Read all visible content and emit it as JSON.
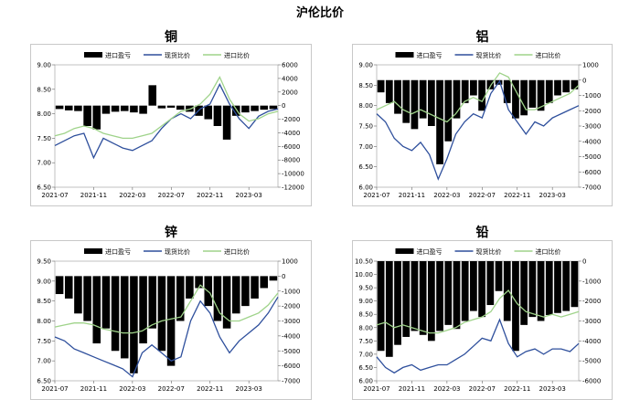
{
  "page_title": "沪伦比价",
  "chart_data": [
    {
      "type": "line",
      "title": "铜",
      "legend": [
        "进口盈亏",
        "现货比价",
        "进口比价"
      ],
      "legend_placement": "top",
      "x_ticks": [
        "2021-07",
        "2021-11",
        "2022-03",
        "2022-07",
        "2022-11",
        "2023-03"
      ],
      "x_range": [
        "2021-07",
        "2023-06"
      ],
      "y_left": {
        "range": [
          6.5,
          9.0
        ],
        "ticks": [
          "9.00",
          "8.50",
          "8.00",
          "7.50",
          "7.00",
          "6.50"
        ]
      },
      "y_right": {
        "range": [
          -12000,
          6000
        ],
        "ticks": [
          "6000",
          "4000",
          "2000",
          "0",
          "-2000",
          "-4000",
          "-6000",
          "-8000",
          "-10000",
          "-12000"
        ]
      },
      "series": [
        {
          "name": "现货比价",
          "axis": "left",
          "color": "#2e4f9c",
          "values": [
            7.35,
            7.45,
            7.55,
            7.6,
            7.1,
            7.5,
            7.4,
            7.3,
            7.25,
            7.35,
            7.45,
            7.7,
            7.9,
            8.0,
            7.9,
            8.1,
            8.2,
            8.6,
            8.2,
            7.9,
            7.7,
            7.95,
            8.05,
            8.1
          ]
        },
        {
          "name": "进口比价",
          "axis": "left",
          "color": "#9fd38a",
          "values": [
            7.55,
            7.6,
            7.7,
            7.75,
            7.7,
            7.6,
            7.55,
            7.5,
            7.5,
            7.55,
            7.6,
            7.75,
            7.9,
            8.05,
            8.1,
            8.2,
            8.4,
            8.75,
            8.3,
            8.0,
            7.85,
            7.9,
            8.0,
            8.05
          ]
        },
        {
          "name": "进口盈亏",
          "axis": "right",
          "type": "bar",
          "color": "#000000",
          "values": [
            -500,
            -700,
            -800,
            -3000,
            -3500,
            -1200,
            -900,
            -800,
            -1000,
            -1200,
            3000,
            -400,
            -300,
            -600,
            -900,
            -1500,
            -2000,
            -3000,
            -5000,
            -1500,
            -1000,
            -800,
            -600,
            -500
          ]
        }
      ]
    },
    {
      "type": "line",
      "title": "铝",
      "legend": [
        "进口盈亏",
        "现货比价",
        "进口比价"
      ],
      "legend_placement": "top",
      "x_ticks": [
        "2021-07",
        "2021-11",
        "2022-03",
        "2022-07",
        "2022-11",
        "2023-03"
      ],
      "x_range": [
        "2021-07",
        "2023-06"
      ],
      "y_left": {
        "range": [
          6.0,
          9.0
        ],
        "ticks": [
          "9.00",
          "8.50",
          "8.00",
          "7.50",
          "7.00",
          "6.50",
          "6.00"
        ]
      },
      "y_right": {
        "range": [
          -7000,
          1000
        ],
        "ticks": [
          "1000",
          "0",
          "-1000",
          "-2000",
          "-3000",
          "-4000",
          "-5000",
          "-6000",
          "-7000"
        ]
      },
      "series": [
        {
          "name": "现货比价",
          "axis": "left",
          "color": "#2e4f9c",
          "values": [
            7.8,
            7.6,
            7.2,
            7.0,
            6.9,
            7.1,
            6.8,
            6.2,
            6.7,
            7.3,
            7.6,
            7.8,
            7.7,
            8.3,
            8.6,
            7.9,
            7.6,
            7.3,
            7.6,
            7.5,
            7.7,
            7.8,
            7.9,
            8.0
          ]
        },
        {
          "name": "进口比价",
          "axis": "left",
          "color": "#9fd38a",
          "values": [
            7.9,
            8.0,
            8.1,
            7.9,
            7.8,
            7.9,
            7.8,
            7.7,
            7.6,
            7.8,
            8.1,
            8.2,
            8.1,
            8.5,
            8.8,
            8.7,
            8.3,
            7.9,
            7.9,
            8.0,
            8.1,
            8.2,
            8.3,
            8.5
          ]
        },
        {
          "name": "进口盈亏",
          "axis": "right",
          "type": "bar",
          "color": "#000000",
          "values": [
            -800,
            -1500,
            -2200,
            -2800,
            -3200,
            -2500,
            -3000,
            -5500,
            -4000,
            -2500,
            -1500,
            -1000,
            -2000,
            -600,
            -300,
            -1500,
            -2500,
            -2300,
            -1800,
            -2000,
            -1500,
            -1000,
            -800,
            -600
          ]
        }
      ]
    },
    {
      "type": "line",
      "title": "锌",
      "legend": [
        "进口盈亏",
        "现货比价",
        "进口比价"
      ],
      "legend_placement": "top",
      "x_ticks": [
        "2021-07",
        "2021-11",
        "2022-03",
        "2022-07",
        "2022-11",
        "2023-03"
      ],
      "x_range": [
        "2021-07",
        "2023-06"
      ],
      "y_left": {
        "range": [
          6.5,
          9.5
        ],
        "ticks": [
          "9.50",
          "9.00",
          "8.50",
          "8.00",
          "7.50",
          "7.00",
          "6.50"
        ]
      },
      "y_right": {
        "range": [
          -7000,
          1000
        ],
        "ticks": [
          "1000",
          "0",
          "-1000",
          "-2000",
          "-3000",
          "-4000",
          "-5000",
          "-6000",
          "-7000"
        ]
      },
      "series": [
        {
          "name": "现货比价",
          "axis": "left",
          "color": "#2e4f9c",
          "values": [
            7.6,
            7.5,
            7.3,
            7.2,
            7.1,
            7.0,
            6.9,
            6.8,
            6.6,
            7.2,
            7.4,
            7.2,
            7.0,
            7.1,
            8.0,
            8.5,
            8.2,
            7.6,
            7.2,
            7.5,
            7.7,
            7.9,
            8.2,
            8.6
          ]
        },
        {
          "name": "进口比价",
          "axis": "left",
          "color": "#9fd38a",
          "values": [
            7.85,
            7.9,
            7.95,
            7.95,
            7.9,
            7.8,
            7.75,
            7.7,
            7.7,
            7.75,
            7.9,
            8.0,
            8.05,
            8.1,
            8.5,
            8.9,
            8.7,
            8.2,
            8.0,
            8.0,
            8.1,
            8.2,
            8.4,
            8.7
          ]
        },
        {
          "name": "进口盈亏",
          "axis": "right",
          "type": "bar",
          "color": "#000000",
          "values": [
            -1200,
            -1500,
            -2500,
            -3000,
            -4500,
            -3500,
            -5000,
            -5500,
            -6500,
            -4500,
            -3500,
            -5000,
            -6000,
            -3000,
            -1500,
            -800,
            -2000,
            -3000,
            -3500,
            -2500,
            -2000,
            -1500,
            -800,
            -300
          ]
        }
      ]
    },
    {
      "type": "line",
      "title": "铅",
      "legend": [
        "进口盈亏",
        "现货比价",
        "进口比价"
      ],
      "legend_placement": "top",
      "x_ticks": [
        "2021-07",
        "2021-11",
        "2022-03",
        "2022-07",
        "2022-11",
        "2023-03"
      ],
      "x_range": [
        "2021-07",
        "2023-06"
      ],
      "y_left": {
        "range": [
          6.0,
          10.5
        ],
        "ticks": [
          "10.50",
          "10.00",
          "9.50",
          "9.00",
          "8.50",
          "8.00",
          "7.50",
          "7.00",
          "6.50",
          "6.00"
        ]
      },
      "y_right": {
        "range": [
          -6000,
          0
        ],
        "ticks": [
          "0",
          "-1000",
          "-2000",
          "-3000",
          "-4000",
          "-5000",
          "-6000"
        ]
      },
      "series": [
        {
          "name": "现货比价",
          "axis": "left",
          "color": "#2e4f9c",
          "values": [
            6.9,
            6.5,
            6.3,
            6.5,
            6.6,
            6.4,
            6.5,
            6.6,
            6.6,
            6.8,
            7.0,
            7.3,
            7.6,
            7.5,
            8.3,
            7.4,
            6.9,
            7.1,
            7.2,
            7.0,
            7.2,
            7.2,
            7.1,
            7.4
          ]
        },
        {
          "name": "进口比价",
          "axis": "left",
          "color": "#9fd38a",
          "values": [
            8.1,
            8.2,
            8.0,
            8.1,
            8.0,
            7.9,
            7.8,
            7.8,
            7.9,
            8.0,
            8.2,
            8.3,
            8.4,
            8.6,
            9.1,
            9.4,
            8.9,
            8.6,
            8.5,
            8.4,
            8.5,
            8.4,
            8.5,
            8.6
          ]
        },
        {
          "name": "进口盈亏",
          "axis": "right",
          "type": "bar",
          "color": "#000000",
          "values": [
            -4500,
            -4800,
            -4200,
            -3800,
            -3500,
            -3700,
            -4000,
            -3500,
            -3200,
            -3400,
            -3000,
            -2500,
            -2800,
            -2200,
            -1500,
            -3000,
            -4500,
            -3200,
            -2800,
            -3000,
            -2700,
            -2600,
            -2500,
            -2300
          ]
        }
      ]
    }
  ]
}
